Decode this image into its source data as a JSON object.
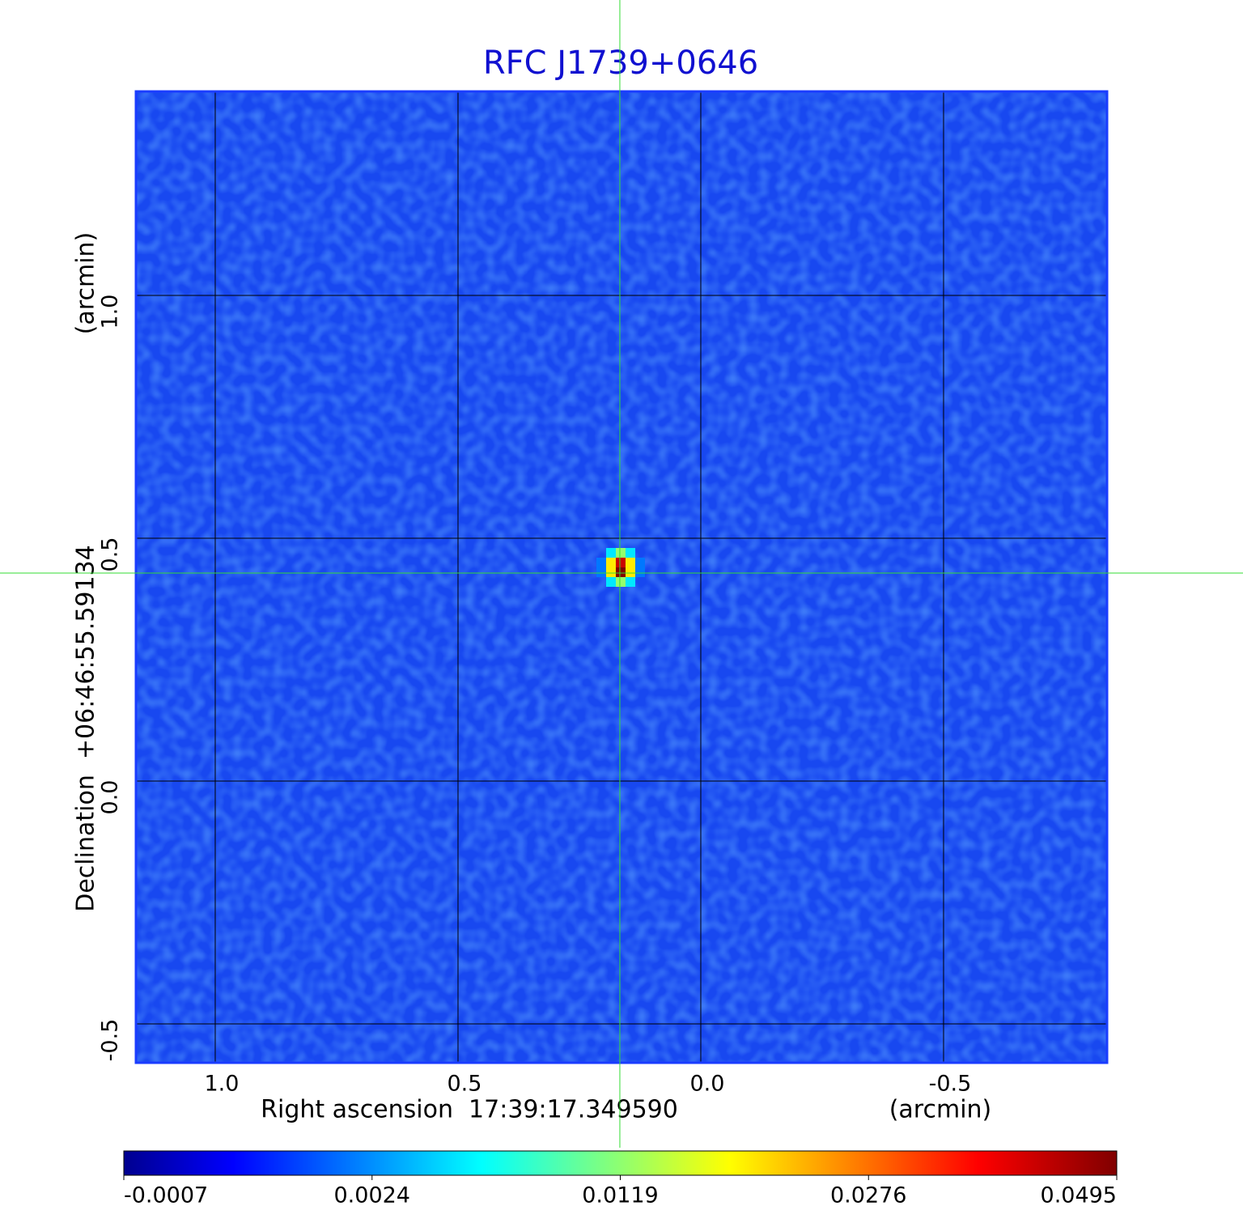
{
  "chart_data": {
    "type": "image",
    "title": "RFC J1739+0646",
    "x_label": "Right ascension  17:39:17.349590",
    "x_unit": "(arcmin)",
    "y_label": "Declination  +06:46:55.59134",
    "y_unit": "(arcmin)",
    "xlim": [
      1.1633,
      -0.8367
    ],
    "ylim": [
      -0.58,
      1.42
    ],
    "xticks": [
      {
        "value": 1,
        "label": "1.0"
      },
      {
        "value": 0.5,
        "label": "0.5"
      },
      {
        "value": 0,
        "label": "0.0"
      },
      {
        "value": -0.5,
        "label": "-0.5"
      }
    ],
    "yticks": [
      {
        "value": -0.5,
        "label": "-0.5"
      },
      {
        "value": 0,
        "label": "0.0"
      },
      {
        "value": 0.5,
        "label": "0.5"
      },
      {
        "value": 1,
        "label": "1.0"
      }
    ],
    "grid": true,
    "background_color": "#1848f0",
    "sources": [
      {
        "x": 0.165,
        "y": 0.43,
        "value": 0.0495
      }
    ],
    "crosshair": {
      "x": 0.1667,
      "y": 0.4283,
      "color": "#33dd33"
    },
    "colorbar": {
      "colormap": "jet",
      "ticks": [
        -0.0007,
        0.0024,
        0.0119,
        0.0276,
        0.0495
      ]
    }
  }
}
